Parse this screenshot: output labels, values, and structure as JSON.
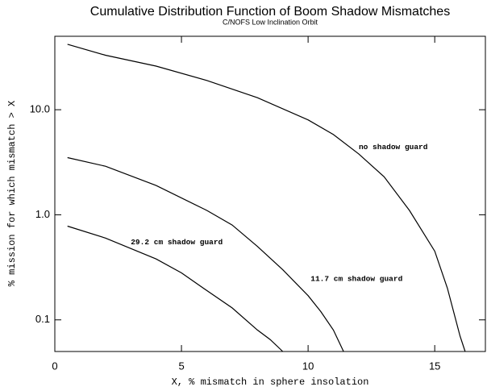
{
  "chart_data": {
    "type": "line",
    "title": "Cumulative Distribution Function of Boom Shadow Mismatches",
    "subtitle": "C/NOFS Low Inclination Orbit",
    "xlabel": "X, % mismatch in sphere insolation",
    "ylabel": "% mission for which mismatch > X",
    "xlim": [
      0,
      17
    ],
    "xticks": [
      0,
      5,
      10,
      15
    ],
    "ylim": [
      0.05,
      50
    ],
    "log_y": true,
    "yticks": [
      0.1,
      {
        "value": 1,
        "label": "1.0"
      },
      {
        "value": 10,
        "label": "10.0"
      }
    ],
    "series": [
      {
        "color": "#000000",
        "x": [
          0.5,
          2,
          4,
          6,
          8,
          10,
          11,
          12,
          13,
          14,
          15,
          15.5,
          16,
          16.2
        ],
        "values": [
          42,
          33,
          26,
          19,
          13,
          8,
          5.8,
          3.8,
          2.3,
          1.1,
          0.45,
          0.2,
          0.07,
          0.05
        ]
      },
      {
        "color": "#000000",
        "x": [
          0.5,
          2,
          4,
          6,
          7,
          8,
          9,
          10,
          10.5,
          11,
          11.4
        ],
        "values": [
          3.5,
          2.9,
          1.9,
          1.1,
          0.8,
          0.5,
          0.3,
          0.17,
          0.12,
          0.08,
          0.05
        ]
      },
      {
        "color": "#000000",
        "x": [
          0.5,
          2,
          4,
          5,
          6,
          7,
          8,
          8.5,
          9
        ],
        "values": [
          0.78,
          0.6,
          0.38,
          0.28,
          0.19,
          0.13,
          0.08,
          0.065,
          0.05
        ]
      }
    ],
    "annotations": [
      {
        "text": "no shadow guard",
        "x": 12,
        "y": 4.4
      },
      {
        "text": "11.7 cm shadow guard",
        "x": 10.1,
        "y": 0.245
      },
      {
        "text": "29.2 cm shadow guard",
        "x": 3.0,
        "y": 0.55
      }
    ]
  }
}
